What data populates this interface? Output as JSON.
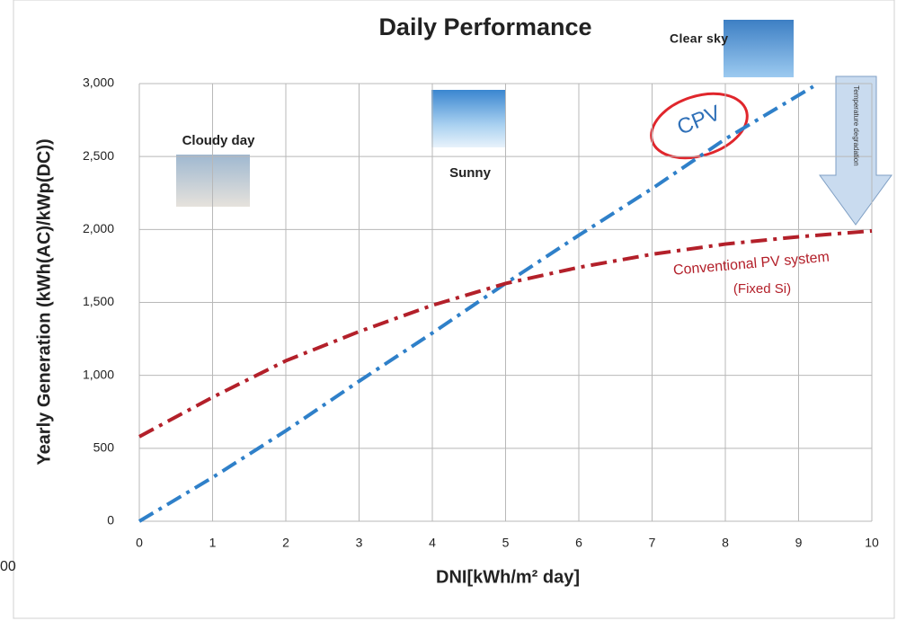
{
  "chart_data": {
    "type": "line",
    "title": "Daily Performance",
    "x_label": "DNI[kWh/m² day]",
    "y_label": "Yearly Generation  (kWh(AC)/kWp(DC))",
    "xlim": [
      0,
      10
    ],
    "xticks": [
      0,
      1,
      2,
      3,
      4,
      5,
      6,
      7,
      8,
      9,
      10
    ],
    "ylim": [
      0,
      3000
    ],
    "yticks": [
      0,
      500,
      {
        "value": 1000,
        "label": "1,000"
      },
      {
        "value": 1500,
        "label": "1,500"
      },
      {
        "value": 2000,
        "label": "2,000"
      },
      {
        "value": 2500,
        "label": "2,500"
      },
      {
        "value": 3000,
        "label": "3,000"
      }
    ],
    "grid": true,
    "series": [
      {
        "name": "CPV",
        "color": "#2f80c9",
        "x": [
          0,
          1,
          2,
          3,
          4,
          5,
          6,
          7,
          8,
          9.2
        ],
        "values": [
          0,
          300,
          620,
          960,
          1290,
          1630,
          1960,
          2280,
          2620,
          2980
        ]
      },
      {
        "name": "Conventional PV system",
        "color": "#b3202a",
        "x": [
          0,
          1,
          2,
          3,
          4,
          5,
          6,
          7,
          8,
          9,
          10
        ],
        "values": [
          580,
          850,
          1100,
          1300,
          1480,
          1630,
          1740,
          1830,
          1900,
          1950,
          1990
        ]
      }
    ],
    "annotations": [
      "Clear sky",
      "Cloudy day",
      "Sunny",
      "(Fixed Si)",
      "Temperature degradation",
      "00"
    ]
  }
}
